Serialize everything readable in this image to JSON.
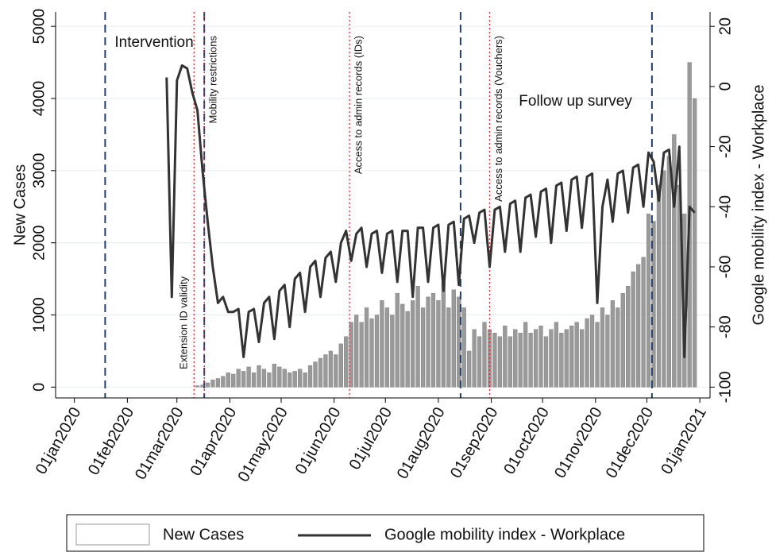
{
  "chart_data": {
    "type": "bar_line_dual_axis",
    "ylabel": "New Cases",
    "y2label": "Google mobility index - Workplace",
    "xlim": [
      -11,
      372
    ],
    "xticks": [
      {
        "value": 0,
        "label": "01jan2020"
      },
      {
        "value": 31,
        "label": "01feb2020"
      },
      {
        "value": 60,
        "label": "01mar2020"
      },
      {
        "value": 91,
        "label": "01apr2020"
      },
      {
        "value": 121,
        "label": "01may2020"
      },
      {
        "value": 152,
        "label": "01jun2020"
      },
      {
        "value": 182,
        "label": "01jul2020"
      },
      {
        "value": 213,
        "label": "01aug2020"
      },
      {
        "value": 244,
        "label": "01sep2020"
      },
      {
        "value": 274,
        "label": "01oct2020"
      },
      {
        "value": 305,
        "label": "01nov2020"
      },
      {
        "value": 335,
        "label": "01dec2020"
      },
      {
        "value": 366,
        "label": "01jan2021"
      }
    ],
    "ylim": [
      -150,
      5200
    ],
    "yticks": [
      0,
      1000,
      2000,
      3000,
      4000,
      5000
    ],
    "y2lim": [
      -103.6,
      24.8
    ],
    "y2ticks": [
      -100,
      -80,
      -60,
      -40,
      -20,
      0,
      20
    ],
    "x": [
      54,
      57,
      60,
      63,
      66,
      69,
      72,
      75,
      78,
      81,
      84,
      87,
      90,
      93,
      96,
      99,
      102,
      105,
      108,
      111,
      114,
      117,
      120,
      123,
      126,
      129,
      132,
      135,
      138,
      141,
      144,
      147,
      150,
      153,
      156,
      159,
      162,
      165,
      168,
      171,
      174,
      177,
      180,
      183,
      186,
      189,
      192,
      195,
      198,
      201,
      204,
      207,
      210,
      213,
      216,
      219,
      222,
      225,
      228,
      231,
      234,
      237,
      240,
      243,
      246,
      249,
      252,
      255,
      258,
      261,
      264,
      267,
      270,
      273,
      276,
      279,
      282,
      285,
      288,
      291,
      294,
      297,
      300,
      303,
      306,
      309,
      312,
      315,
      318,
      321,
      324,
      327,
      330,
      333,
      336,
      339,
      342,
      345,
      348,
      351,
      354,
      357,
      360,
      363
    ],
    "series": [
      {
        "name": "New Cases",
        "kind": "bar",
        "color": "#9a9a9a",
        "values": [
          null,
          null,
          null,
          null,
          null,
          null,
          20,
          30,
          60,
          100,
          120,
          150,
          200,
          180,
          250,
          220,
          280,
          200,
          300,
          250,
          200,
          320,
          280,
          250,
          200,
          220,
          250,
          200,
          300,
          350,
          400,
          450,
          500,
          450,
          600,
          700,
          900,
          1000,
          900,
          1100,
          950,
          1000,
          1200,
          1100,
          1000,
          1300,
          1150,
          1050,
          1200,
          1400,
          1100,
          1250,
          1300,
          1200,
          1450,
          1100,
          1350,
          1250,
          1100,
          500,
          800,
          700,
          900,
          800,
          750,
          700,
          850,
          700,
          800,
          750,
          900,
          750,
          800,
          850,
          700,
          800,
          900,
          750,
          800,
          850,
          900,
          800,
          950,
          1000,
          900,
          1100,
          1000,
          1200,
          1100,
          1300,
          1400,
          1600,
          1700,
          1800,
          2400,
          2300,
          2800,
          3000,
          3200,
          3500,
          2800,
          2400,
          4500,
          4000
        ]
      },
      {
        "name": "Google mobility index - Workplace",
        "kind": "line",
        "axis": "y2",
        "color": "#333333",
        "values": [
          3,
          -70,
          2,
          7,
          6,
          -2,
          -8,
          -28,
          -45,
          -60,
          -72,
          -70,
          -75,
          -75,
          -74,
          -90,
          -75,
          -74,
          -85,
          -72,
          -70,
          -84,
          -68,
          -66,
          -80,
          -64,
          -62,
          -75,
          -60,
          -58,
          -70,
          -57,
          -55,
          -65,
          -52,
          -48,
          -58,
          -49,
          -47,
          -60,
          -49,
          -48,
          -62,
          -49,
          -48,
          -65,
          -48,
          -48,
          -70,
          -47,
          -47,
          -65,
          -47,
          -46,
          -68,
          -46,
          -45,
          -66,
          -44,
          -43,
          -52,
          -42,
          -41,
          -60,
          -41,
          -40,
          -55,
          -39,
          -38,
          -55,
          -37,
          -36,
          -50,
          -35,
          -34,
          -52,
          -33,
          -32,
          -48,
          -31,
          -30,
          -47,
          -30,
          -29,
          -72,
          -40,
          -31,
          -45,
          -29,
          -28,
          -42,
          -27,
          -26,
          -40,
          -22,
          -25,
          -38,
          -22,
          -21,
          -40,
          -20,
          -90,
          -40,
          -42
        ]
      }
    ],
    "annotations": [
      {
        "x": 18,
        "label": "Intervention",
        "style": "dashed",
        "color": "#1f3f66"
      },
      {
        "x": 76,
        "label": "",
        "style": "dashed",
        "color": "#1f3f66"
      },
      {
        "x": 226,
        "label": "",
        "style": "dashed",
        "color": "#1f3f66"
      },
      {
        "x": 338,
        "label": "Follow up survey",
        "style": "dashed",
        "color": "#1f3f66"
      },
      {
        "x": 70,
        "label": "Extension ID validity",
        "style": "dotted",
        "color": "#e8232a"
      },
      {
        "x": 76,
        "label": "Mobility restrictions",
        "style": "dotted",
        "color": "#e8232a"
      },
      {
        "x": 161,
        "label": "Access to admin records (IDs)",
        "style": "dotted",
        "color": "#e8232a"
      },
      {
        "x": 243,
        "label": "Access to admin records (Vouchers)",
        "style": "dotted",
        "color": "#e8232a"
      }
    ]
  }
}
